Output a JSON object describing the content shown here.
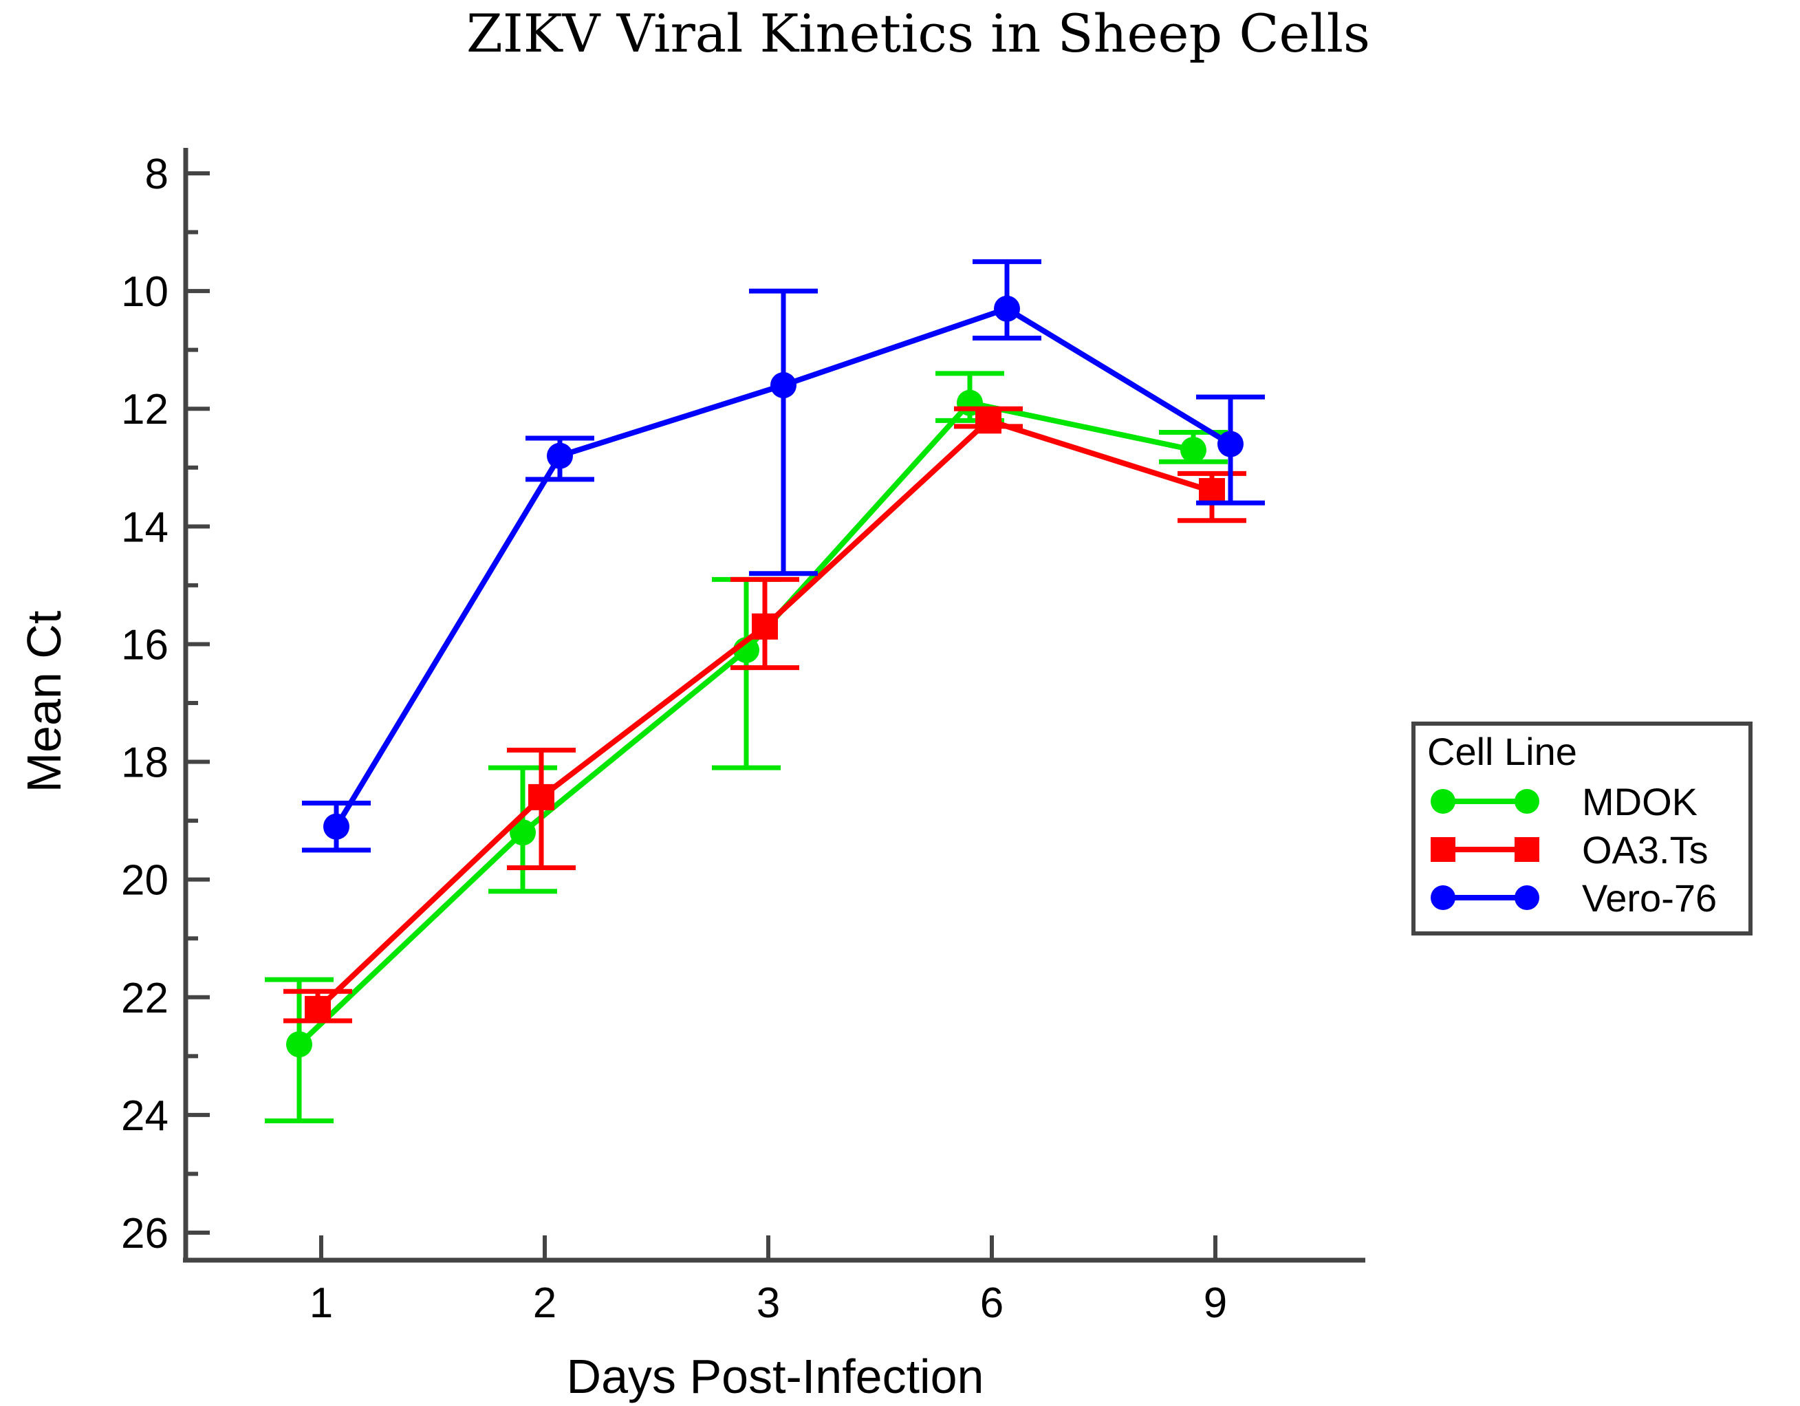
{
  "chart_data": {
    "type": "line",
    "title": "ZIKV Viral Kinetics in Sheep Cells",
    "xlabel": "Days Post-Infection",
    "ylabel": "Mean Ct",
    "categories": [
      "1",
      "2",
      "3",
      "6",
      "9"
    ],
    "ylim": [
      26,
      8
    ],
    "y_inverted": true,
    "yticks": [
      8,
      10,
      12,
      14,
      16,
      18,
      20,
      22,
      24,
      26
    ],
    "grid": false,
    "legend": {
      "title": "Cell Line",
      "position": "right"
    },
    "series": [
      {
        "name": "MDOK",
        "color": "#00e600",
        "marker": "circle",
        "values": [
          22.8,
          19.2,
          16.1,
          11.9,
          12.7
        ],
        "err_low": [
          21.7,
          18.1,
          14.9,
          11.4,
          12.4
        ],
        "err_high": [
          24.1,
          20.2,
          18.1,
          12.2,
          12.9
        ]
      },
      {
        "name": "OA3.Ts",
        "color": "#ff0000",
        "marker": "square",
        "values": [
          22.2,
          18.6,
          15.7,
          12.2,
          13.4
        ],
        "err_low": [
          21.9,
          17.8,
          14.9,
          12.0,
          13.1
        ],
        "err_high": [
          22.4,
          19.8,
          16.4,
          12.3,
          13.9
        ]
      },
      {
        "name": "Vero-76",
        "color": "#0000ff",
        "marker": "circle",
        "values": [
          19.1,
          12.8,
          11.6,
          10.3,
          12.6
        ],
        "err_low": [
          18.7,
          12.5,
          10.0,
          9.5,
          11.8
        ],
        "err_high": [
          19.5,
          13.2,
          14.8,
          10.8,
          13.6
        ]
      }
    ]
  }
}
